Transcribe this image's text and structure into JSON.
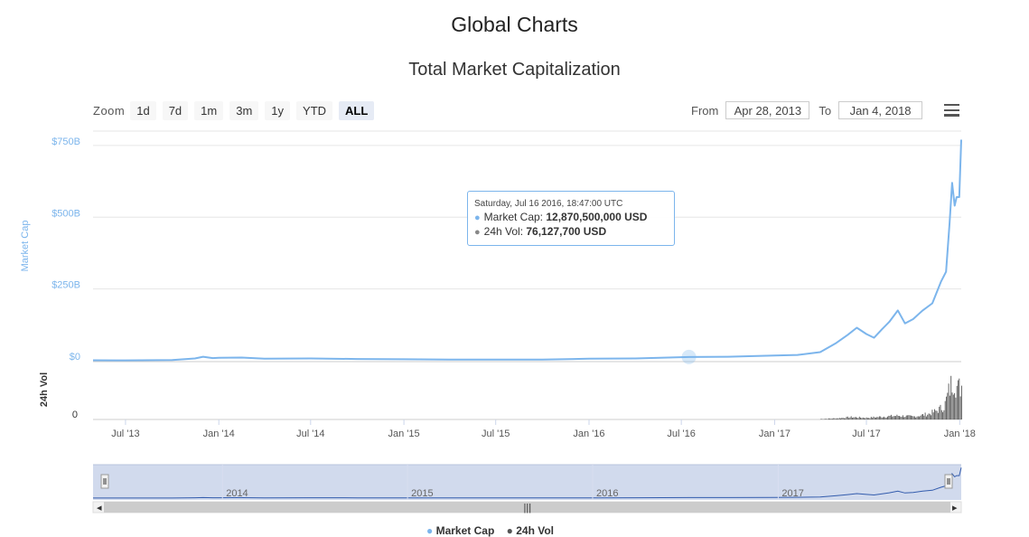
{
  "header": {
    "page_title": "Global Charts",
    "chart_title": "Total Market Capitalization"
  },
  "toolbar": {
    "zoom_label": "Zoom",
    "zoom_buttons": [
      "1d",
      "7d",
      "1m",
      "3m",
      "1y",
      "YTD",
      "ALL"
    ],
    "active_zoom": "ALL",
    "from_label": "From",
    "from_value": "Apr 28, 2013",
    "to_label": "To",
    "to_value": "Jan 4, 2018",
    "menu_icon": "hamburger-menu-icon"
  },
  "tooltip": {
    "date": "Saturday, Jul 16 2016, 18:47:00 UTC",
    "rows": [
      {
        "label": "Market Cap:",
        "value": "12,870,500,000 USD",
        "color": "#7cb5ec"
      },
      {
        "label": "24h Vol:",
        "value": "76,127,700 USD",
        "color": "#888888"
      }
    ]
  },
  "legend": {
    "items": [
      {
        "label": "Market Cap",
        "color": "#7cb5ec"
      },
      {
        "label": "24h Vol",
        "color": "#555555"
      }
    ]
  },
  "navigator": {
    "year_labels": [
      "2014",
      "2015",
      "2016",
      "2017"
    ]
  },
  "colors": {
    "market_cap": "#7cb5ec",
    "volume": "#555555",
    "navigator_fill": "#ccd6eb",
    "navigator_line": "#335cad"
  },
  "chart_data": {
    "type": "line",
    "title": "Total Market Capitalization",
    "x_range": [
      "2013-04-28",
      "2018-01-04"
    ],
    "x_tick_labels": [
      "Jul '13",
      "Jan '14",
      "Jul '14",
      "Jan '15",
      "Jul '15",
      "Jan '16",
      "Jul '16",
      "Jan '17",
      "Jul '17",
      "Jan '18"
    ],
    "y_axis_label": "Market Cap",
    "y_tick_labels": [
      "$0",
      "$250B",
      "$500B",
      "$750B"
    ],
    "ylim_billion_usd": [
      0,
      800
    ],
    "volume_axis_label": "24h Vol",
    "volume_tick_labels": [
      "0"
    ],
    "series": [
      {
        "name": "Market Cap",
        "unit": "billion USD",
        "x": [
          "2013-04-28",
          "2013-07-01",
          "2013-10-01",
          "2013-11-15",
          "2013-12-01",
          "2013-12-20",
          "2014-01-01",
          "2014-02-15",
          "2014-04-01",
          "2014-07-01",
          "2014-10-01",
          "2015-01-01",
          "2015-04-01",
          "2015-07-01",
          "2015-10-01",
          "2016-01-01",
          "2016-04-01",
          "2016-07-16",
          "2016-10-01",
          "2017-01-01",
          "2017-02-15",
          "2017-04-01",
          "2017-05-01",
          "2017-05-25",
          "2017-06-12",
          "2017-07-01",
          "2017-07-16",
          "2017-08-01",
          "2017-08-15",
          "2017-09-01",
          "2017-09-15",
          "2017-10-01",
          "2017-10-20",
          "2017-11-08",
          "2017-11-25",
          "2017-12-05",
          "2017-12-12",
          "2017-12-17",
          "2017-12-22",
          "2017-12-26",
          "2017-12-31",
          "2018-01-04"
        ],
        "values": [
          1.6,
          1.2,
          2.2,
          8,
          14,
          9,
          10,
          11,
          7,
          8,
          6,
          5,
          4,
          4,
          4,
          7,
          8,
          12.9,
          14,
          18,
          20,
          30,
          60,
          90,
          115,
          93,
          80,
          110,
          135,
          175,
          130,
          145,
          175,
          200,
          275,
          310,
          480,
          620,
          540,
          570,
          570,
          770
        ]
      },
      {
        "name": "24h Vol",
        "unit": "billion USD",
        "x": [
          "2017-04-01",
          "2017-05-01",
          "2017-06-01",
          "2017-07-01",
          "2017-08-01",
          "2017-09-01",
          "2017-10-01",
          "2017-11-01",
          "2017-11-15",
          "2017-12-01",
          "2017-12-10",
          "2017-12-20",
          "2017-12-27",
          "2018-01-04"
        ],
        "values": [
          0.5,
          1.2,
          2.5,
          1.8,
          3,
          4,
          3,
          6,
          9,
          14,
          30,
          45,
          32,
          36
        ]
      }
    ],
    "legend_position": "bottom",
    "grid": true
  }
}
